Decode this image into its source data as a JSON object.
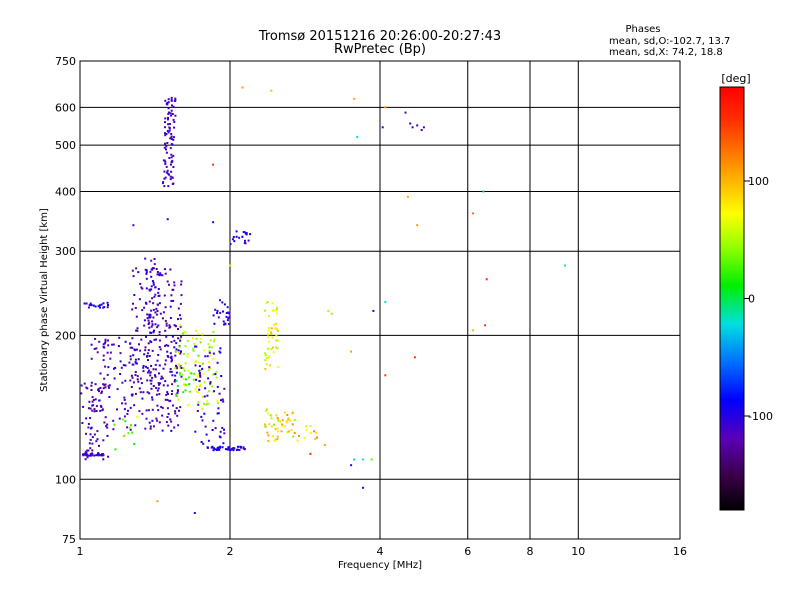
{
  "chart_data": {
    "type": "scatter",
    "title": "Tromsø 20151216 20:26:00-20:27:43",
    "subtitle": "RwPretec (Bp)",
    "xlabel": "Frequency [MHz]",
    "ylabel": "Stationary phase Virtual Height [km]",
    "x_scale": "log",
    "y_scale": "log",
    "xlim": [
      1,
      16
    ],
    "ylim": [
      75,
      750
    ],
    "x_ticks": [
      1,
      2,
      4,
      6,
      8,
      10,
      16
    ],
    "x_tick_labels": [
      "1",
      "2",
      "4",
      "6",
      "8",
      "10",
      "16"
    ],
    "y_ticks": [
      75,
      100,
      200,
      300,
      400,
      500,
      600,
      750
    ],
    "y_tick_labels": [
      "75",
      "100",
      "200",
      "300",
      "400",
      "500",
      "600",
      "750"
    ],
    "grid": true,
    "phases_header": "Phases",
    "phases_stats": [
      "mean, sd,O:-102.7, 13.7",
      "mean, sd,X:  74.2, 18.8"
    ],
    "colorbar": {
      "label": "[deg]",
      "range": [
        -180,
        180
      ],
      "ticks": [
        100,
        0,
        -100
      ],
      "tick_labels": [
        "100",
        "0",
        "-100"
      ]
    },
    "clusters": [
      {
        "x": [
          1.45,
          1.56
        ],
        "y": [
          410,
          640
        ],
        "n": 90,
        "phase": -110,
        "jitter": 0.08
      },
      {
        "x": [
          1.0,
          1.14
        ],
        "y": [
          110,
          160
        ],
        "n": 70,
        "phase": -115,
        "jitter": 0.3
      },
      {
        "x": [
          1.0,
          1.12
        ],
        "y": [
          112,
          113
        ],
        "n": 30,
        "phase": -105,
        "jitter": 0.3
      },
      {
        "x": [
          1.05,
          1.6
        ],
        "y": [
          125,
          200
        ],
        "n": 200,
        "phase": -112,
        "jitter": 0.3
      },
      {
        "x": [
          1.25,
          1.6
        ],
        "y": [
          150,
          280
        ],
        "n": 170,
        "phase": -118,
        "jitter": 0.3
      },
      {
        "x": [
          1.35,
          1.45
        ],
        "y": [
          200,
          290
        ],
        "n": 50,
        "phase": -108,
        "jitter": 0.2
      },
      {
        "x": [
          1.55,
          1.9
        ],
        "y": [
          140,
          210
        ],
        "n": 90,
        "phase": 55,
        "jitter": 0.5
      },
      {
        "x": [
          1.7,
          1.95
        ],
        "y": [
          118,
          190
        ],
        "n": 60,
        "phase": -105,
        "jitter": 0.3
      },
      {
        "x": [
          1.8,
          2.15
        ],
        "y": [
          115,
          117
        ],
        "n": 45,
        "phase": -100,
        "jitter": 0.3
      },
      {
        "x": [
          1.85,
          2.0
        ],
        "y": [
          210,
          240
        ],
        "n": 25,
        "phase": -100,
        "jitter": 0.3
      },
      {
        "x": [
          1.98,
          2.2
        ],
        "y": [
          310,
          330
        ],
        "n": 18,
        "phase": -100,
        "jitter": 0.2
      },
      {
        "x": [
          1.02,
          1.15
        ],
        "y": [
          228,
          234
        ],
        "n": 18,
        "phase": -100,
        "jitter": 0.3
      },
      {
        "x": [
          2.35,
          2.5
        ],
        "y": [
          170,
          240
        ],
        "n": 45,
        "phase": 75,
        "jitter": 0.5
      },
      {
        "x": [
          2.35,
          2.7
        ],
        "y": [
          120,
          140
        ],
        "n": 50,
        "phase": 75,
        "jitter": 0.7
      },
      {
        "x": [
          2.7,
          3.0
        ],
        "y": [
          120,
          130
        ],
        "n": 10,
        "phase": 90,
        "jitter": 0.5
      },
      {
        "x": [
          1.55,
          1.7
        ],
        "y": [
          150,
          180
        ],
        "n": 14,
        "phase": 20,
        "jitter": 0.4
      },
      {
        "x": [
          1.15,
          1.35
        ],
        "y": [
          115,
          135
        ],
        "n": 12,
        "phase": 40,
        "jitter": 0.5
      }
    ],
    "isolated_points": [
      {
        "x": 1.43,
        "y": 90,
        "phase": 110
      },
      {
        "x": 1.7,
        "y": 85,
        "phase": -100
      },
      {
        "x": 1.85,
        "y": 455,
        "phase": 150
      },
      {
        "x": 2.12,
        "y": 660,
        "phase": 110
      },
      {
        "x": 2.42,
        "y": 650,
        "phase": 100
      },
      {
        "x": 3.55,
        "y": 625,
        "phase": 105
      },
      {
        "x": 3.6,
        "y": 520,
        "phase": -20
      },
      {
        "x": 4.1,
        "y": 600,
        "phase": 110
      },
      {
        "x": 4.05,
        "y": 545,
        "phase": -100
      },
      {
        "x": 4.5,
        "y": 585,
        "phase": -115
      },
      {
        "x": 4.6,
        "y": 555,
        "phase": -110
      },
      {
        "x": 4.75,
        "y": 550,
        "phase": -105
      },
      {
        "x": 4.85,
        "y": 538,
        "phase": -110
      },
      {
        "x": 4.9,
        "y": 545,
        "phase": -112
      },
      {
        "x": 4.65,
        "y": 545,
        "phase": -108
      },
      {
        "x": 4.55,
        "y": 390,
        "phase": 105
      },
      {
        "x": 4.75,
        "y": 340,
        "phase": 110
      },
      {
        "x": 6.45,
        "y": 400,
        "phase": -30
      },
      {
        "x": 6.15,
        "y": 360,
        "phase": 130
      },
      {
        "x": 6.55,
        "y": 262,
        "phase": 160
      },
      {
        "x": 9.4,
        "y": 280,
        "phase": -20
      },
      {
        "x": 6.15,
        "y": 205,
        "phase": 100
      },
      {
        "x": 6.5,
        "y": 210,
        "phase": 150
      },
      {
        "x": 3.15,
        "y": 225,
        "phase": 45
      },
      {
        "x": 3.2,
        "y": 222,
        "phase": 40
      },
      {
        "x": 3.88,
        "y": 225,
        "phase": -100
      },
      {
        "x": 4.1,
        "y": 235,
        "phase": -20
      },
      {
        "x": 4.7,
        "y": 180,
        "phase": 150
      },
      {
        "x": 4.1,
        "y": 165,
        "phase": 150
      },
      {
        "x": 3.5,
        "y": 185,
        "phase": 110
      },
      {
        "x": 3.55,
        "y": 110,
        "phase": -30
      },
      {
        "x": 3.7,
        "y": 110,
        "phase": -20
      },
      {
        "x": 3.85,
        "y": 110,
        "phase": 30
      },
      {
        "x": 3.7,
        "y": 96,
        "phase": -100
      },
      {
        "x": 3.5,
        "y": 107,
        "phase": -100
      },
      {
        "x": 2.9,
        "y": 113,
        "phase": 150
      },
      {
        "x": 3.1,
        "y": 118,
        "phase": 110
      },
      {
        "x": 2.95,
        "y": 126,
        "phase": 120
      },
      {
        "x": 2.0,
        "y": 280,
        "phase": 60
      },
      {
        "x": 1.85,
        "y": 345,
        "phase": -100
      },
      {
        "x": 1.5,
        "y": 350,
        "phase": -100
      },
      {
        "x": 1.28,
        "y": 340,
        "phase": -110
      }
    ]
  }
}
